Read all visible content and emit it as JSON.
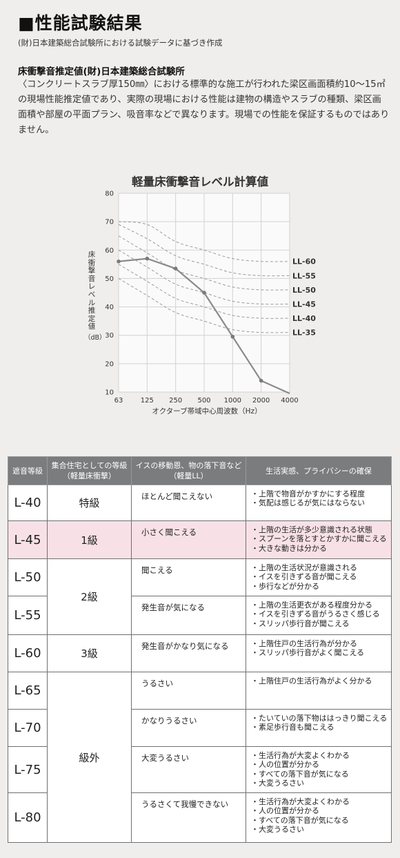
{
  "header": {
    "title": "■性能試験結果",
    "subtitle": "(財)日本建築総合試験所における試験データに基づき作成"
  },
  "section": {
    "heading": "床衝撃音推定値(財)日本建築総合試験所",
    "paragraph": "〈コンクリートスラブ厚150㎜〉における標準的な施工が行われた梁区画面積約10～15㎡の現場性能推定値であり、実際の現場における性能は建物の構造やスラブの種類、梁区画面積や部屋の平面プラン、吸音率などで異なります。現場での性能を保証するものではありません。"
  },
  "chart_data": {
    "type": "line",
    "title": "軽量床衝撃音レベル計算値",
    "xlabel": "オクターブ帯域中心周波数（Hz）",
    "ylabel": "床衝撃音レベル推定値",
    "yunit": "（dB）",
    "x_ticks": [
      "63",
      "125",
      "250",
      "500",
      "1000",
      "2000",
      "4000"
    ],
    "y_ticks": [
      10,
      20,
      30,
      40,
      50,
      60,
      70,
      80
    ],
    "ylim": [
      10,
      80
    ],
    "grid": true,
    "series": [
      {
        "x": [
          "63",
          "125",
          "250",
          "500",
          "1000",
          "2000",
          "4000"
        ],
        "values": [
          56,
          57,
          53.5,
          45,
          29.5,
          14,
          9.5
        ]
      }
    ],
    "reference_curves": [
      {
        "name": "LL-60",
        "values": [
          70,
          69,
          63,
          60,
          57,
          56,
          56
        ]
      },
      {
        "name": "LL-55",
        "values": [
          69,
          64,
          58,
          55,
          52,
          51,
          51
        ]
      },
      {
        "name": "LL-50",
        "values": [
          65,
          59,
          53,
          50,
          47,
          46,
          46
        ]
      },
      {
        "name": "LL-45",
        "values": [
          60,
          54,
          48,
          45,
          42,
          41,
          41
        ]
      },
      {
        "name": "LL-40",
        "values": [
          55,
          49,
          43,
          40,
          37,
          36,
          36
        ]
      },
      {
        "name": "LL-35",
        "values": [
          50,
          44,
          38,
          35,
          32,
          31,
          31
        ]
      }
    ],
    "line_color": "#8a8a8a",
    "reference_color": "#9a9a9a"
  },
  "table": {
    "headers": [
      "遮音等級",
      "集合住宅としての等級（軽量床衝撃）",
      "イスの移動恩、物の落下音など（軽量LL）",
      "生活実感、プライバシーの確保"
    ],
    "grades": [
      "特級",
      "1級",
      "2級",
      "3級",
      "級外"
    ],
    "rows": [
      {
        "level": "L-40",
        "noise": "ほとんど聞こえない",
        "feel": [
          "・上階で物音がかすかにする程度",
          "・気配は感じるが気にはならない"
        ]
      },
      {
        "level": "L-45",
        "noise": "小さく聞こえる",
        "feel": [
          "・上階の生活が多少意識される状態",
          "・スプーンを落とすとかすかに聞こえる",
          "・大きな動きは分かる"
        ]
      },
      {
        "level": "L-50",
        "noise": "聞こえる",
        "feel": [
          "・上階の生活状況が意識される",
          "・イスを引きずる音が聞こえる",
          "・歩行などが分かる"
        ]
      },
      {
        "level": "L-55",
        "noise": "発生音が気になる",
        "feel": [
          "・上階の生活更衣がある程度分かる",
          "・イスを引きずる音がうるさく感じる",
          "・スリッパ歩行音が聞こえる"
        ]
      },
      {
        "level": "L-60",
        "noise": "発生音がかなり気になる",
        "feel": [
          "・上階住戸の生活行為が分かる",
          "・スリッパ歩行音がよく聞こえる"
        ]
      },
      {
        "level": "L-65",
        "noise": "うるさい",
        "feel": [
          "・上階住戸の生活行為がよく分かる"
        ]
      },
      {
        "level": "L-70",
        "noise": "かなりうるさい",
        "feel": [
          "・たいていの落下物ははっきり聞こえる",
          "・素足歩行音も聞こえる"
        ]
      },
      {
        "level": "L-75",
        "noise": "大変うるさい",
        "feel": [
          "・生活行為が大変よくわかる",
          "・人の位置が分かる",
          "・すべての落下音が気になる",
          "・大変うるさい"
        ]
      },
      {
        "level": "L-80",
        "noise": "うるさくて我慢できない",
        "feel": [
          "・生活行為が大変よくわかる",
          "・人の位置が分かる",
          "・すべての落下音が気になる",
          "・大変うるさい"
        ]
      }
    ]
  }
}
